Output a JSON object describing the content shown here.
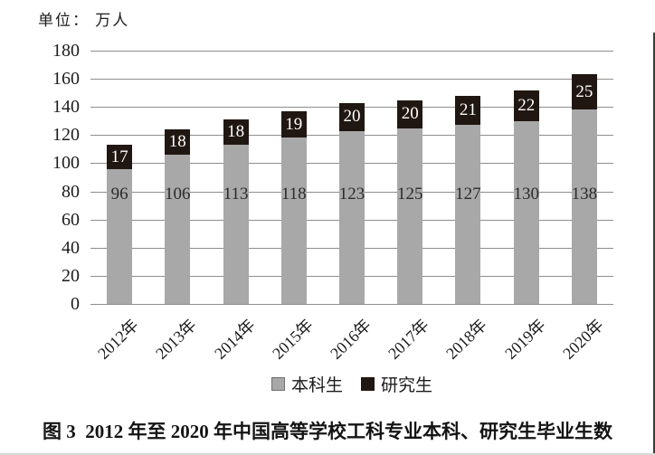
{
  "unit_label": "单位： 万人",
  "chart_data": {
    "type": "bar",
    "stacked": true,
    "title": "",
    "unit_label": "单位： 万人",
    "categories": [
      "2012年",
      "2013年",
      "2014年",
      "2015年",
      "2016年",
      "2017年",
      "2018年",
      "2019年",
      "2020年"
    ],
    "series": [
      {
        "name": "本科生",
        "color": "#a8a8a8",
        "label_color": "#2b2b2b",
        "values": [
          96,
          106,
          113,
          118,
          123,
          125,
          127,
          130,
          138
        ]
      },
      {
        "name": "研究生",
        "color": "#211712",
        "label_color": "#ffffff",
        "values": [
          17,
          18,
          18,
          19,
          20,
          20,
          21,
          22,
          25
        ]
      }
    ],
    "ylim": [
      0,
      180
    ],
    "ytick_step": 20,
    "yticks": [
      0,
      20,
      40,
      60,
      80,
      100,
      120,
      140,
      160,
      180
    ],
    "grid": true,
    "gridline_color": "#8e8e8e",
    "legend_position": "bottom"
  },
  "legend": {
    "undergrad_label": "本科生",
    "grad_label": "研究生"
  },
  "caption": "图 3  2012 年至 2020 年中国高等学校工科专业本科、研究生毕业生数"
}
